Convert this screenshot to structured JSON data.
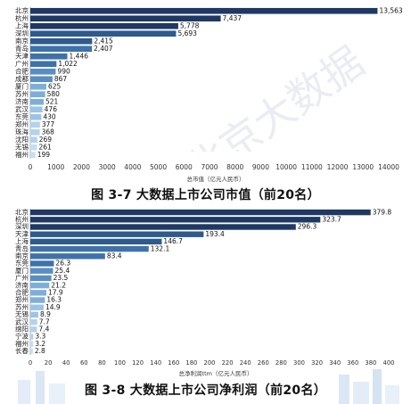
{
  "chart_data": [
    {
      "type": "bar",
      "orientation": "horizontal",
      "categories": [
        "北京",
        "杭州",
        "上海",
        "深圳",
        "南京",
        "青岛",
        "天津",
        "广州",
        "合肥",
        "成都",
        "厦门",
        "苏州",
        "济南",
        "武汉",
        "东莞",
        "郑州",
        "珠海",
        "沈阳",
        "无锡",
        "福州"
      ],
      "values": [
        13563,
        7437,
        5778,
        5693,
        2415,
        2407,
        1446,
        1022,
        990,
        867,
        625,
        580,
        521,
        476,
        430,
        377,
        368,
        269,
        261,
        199
      ],
      "value_labels": [
        "13,563",
        "7,437",
        "5,778",
        "5,693",
        "2,415",
        "2,407",
        "1,446",
        "1,022",
        "990",
        "867",
        "625",
        "580",
        "521",
        "476",
        "430",
        "377",
        "368",
        "269",
        "261",
        "199"
      ],
      "xlabel": "总市值（亿元人民币）",
      "xlim": [
        0,
        14000
      ],
      "xticks": [
        0,
        1000,
        2000,
        3000,
        4000,
        5000,
        6000,
        7000,
        8000,
        9000,
        10000,
        11000,
        12000,
        13000,
        14000
      ],
      "xtick_labels": [
        "0",
        "1000",
        "2000",
        "3000",
        "4000",
        "5000",
        "6000",
        "7000",
        "8000",
        "9000",
        "10000",
        "11000",
        "12000",
        "13000",
        "14000"
      ],
      "title": "图 3-7  大数据上市公司市值（前20名）",
      "grid": false,
      "colors": [
        "#1f3864",
        "#2e5a8c",
        "#3f72a8",
        "#5a8ec2",
        "#7eaed8",
        "#9dc3e6",
        "#b4d2ee",
        "#c6ddf2"
      ]
    },
    {
      "type": "bar",
      "orientation": "horizontal",
      "categories": [
        "北京",
        "杭州",
        "深圳",
        "天津",
        "上海",
        "青岛",
        "南京",
        "东莞",
        "厦门",
        "广州",
        "济南",
        "合肥",
        "郑州",
        "苏州",
        "无锡",
        "武汉",
        "绵阳",
        "宁波",
        "福州",
        "长春"
      ],
      "values": [
        379.8,
        323.7,
        296.3,
        193.4,
        146.7,
        132.1,
        83.4,
        26.3,
        25.4,
        23.5,
        21.2,
        17.9,
        16.3,
        14.9,
        8.9,
        7.7,
        7.4,
        3.3,
        3.2,
        2.8
      ],
      "value_labels": [
        "379.8",
        "323.7",
        "296.3",
        "193.4",
        "146.7",
        "132.1",
        "83.4",
        "26.3",
        "25.4",
        "23.5",
        "21.2",
        "17.9",
        "16.3",
        "14.9",
        "8.9",
        "7.7",
        "7.4",
        "3.3",
        "3.2",
        "2.8"
      ],
      "xlabel": "总净利润ttm（亿元人民币）",
      "xlim": [
        0,
        400
      ],
      "xticks": [
        0,
        20,
        40,
        60,
        80,
        100,
        120,
        140,
        160,
        180,
        200,
        220,
        240,
        260,
        280,
        300,
        320,
        340,
        360,
        380,
        400
      ],
      "xtick_labels": [
        "0",
        "20",
        "40",
        "60",
        "80",
        "100",
        "120",
        "140",
        "160",
        "180",
        "200",
        "220",
        "240",
        "260",
        "280",
        "300",
        "320",
        "340",
        "360",
        "380",
        "400"
      ],
      "title": "图 3-8  大数据上市公司净利润（前20名）",
      "grid": false,
      "colors": [
        "#1f3864",
        "#2e5a8c",
        "#3f72a8",
        "#5a8ec2",
        "#7eaed8",
        "#9dc3e6",
        "#b4d2ee",
        "#c6ddf2"
      ]
    }
  ]
}
